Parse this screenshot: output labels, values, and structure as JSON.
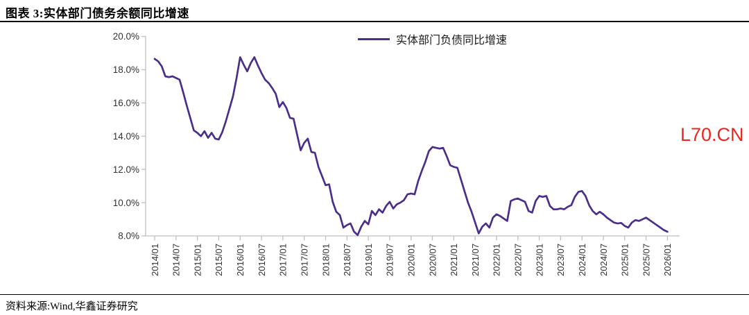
{
  "header": {
    "title": "图表 3:实体部门债务余额同比增速"
  },
  "legend": {
    "label": "实体部门负债同比增速"
  },
  "watermark": {
    "text": "L70.CN"
  },
  "footer": {
    "source": "资料来源:Wind,华鑫证券研究"
  },
  "colors": {
    "line": "#4B2D8C",
    "axis": "#BFBFBF",
    "tick_label": "#333333",
    "watermark": "#E8281E",
    "rule": "#000000"
  },
  "chart_data": {
    "type": "line",
    "title": "实体部门债务余额同比增速",
    "legend_position": "top-center",
    "grid": false,
    "ylim": [
      8,
      20
    ],
    "y_tick_labels": [
      "20.0%",
      "18.0%",
      "16.0%",
      "14.0%",
      "12.0%",
      "10.0%",
      "8.0%"
    ],
    "x_tick_labels": [
      "2014/01",
      "2014/07",
      "2015/01",
      "2015/07",
      "2016/01",
      "2016/07",
      "2017/01",
      "2017/07",
      "2018/01",
      "2018/07",
      "2019/01",
      "2019/07",
      "2020/01",
      "2020/07",
      "2021/01",
      "2021/07",
      "2022/01",
      "2022/07",
      "2023/01",
      "2023/07",
      "2024/01",
      "2024/07",
      "2025/01",
      "2025/07",
      "2026/01"
    ],
    "series": [
      {
        "name": "实体部门负债同比增速",
        "unit": "%",
        "frequency": "monthly",
        "start": "2014/01",
        "end": "2026/01",
        "values": [
          18.65,
          18.5,
          18.2,
          17.6,
          17.55,
          17.6,
          17.5,
          17.4,
          16.65,
          15.85,
          15.1,
          14.35,
          14.2,
          14.0,
          14.3,
          13.9,
          14.2,
          13.85,
          13.8,
          14.25,
          14.9,
          15.65,
          16.4,
          17.5,
          18.75,
          18.3,
          17.9,
          18.4,
          18.75,
          18.25,
          17.8,
          17.4,
          17.2,
          16.9,
          16.55,
          15.75,
          16.05,
          15.7,
          15.1,
          15.05,
          14.1,
          13.15,
          13.6,
          13.85,
          13.05,
          13.0,
          12.15,
          11.6,
          11.05,
          11.1,
          10.05,
          9.45,
          9.25,
          8.5,
          8.65,
          8.75,
          8.25,
          8.05,
          8.55,
          8.9,
          8.7,
          9.5,
          9.25,
          9.6,
          9.4,
          9.8,
          10.05,
          9.65,
          9.9,
          10.0,
          10.15,
          10.5,
          10.55,
          10.5,
          11.3,
          11.9,
          12.45,
          13.1,
          13.35,
          13.3,
          13.25,
          13.3,
          12.8,
          12.25,
          12.15,
          12.1,
          11.4,
          10.7,
          10.0,
          9.45,
          8.8,
          8.15,
          8.55,
          8.75,
          8.5,
          9.1,
          9.3,
          9.2,
          9.05,
          8.9,
          10.1,
          10.2,
          10.25,
          10.15,
          10.05,
          9.5,
          9.4,
          10.1,
          10.4,
          10.35,
          10.4,
          9.8,
          9.6,
          9.6,
          9.65,
          9.6,
          9.75,
          9.85,
          10.35,
          10.65,
          10.7,
          10.4,
          9.85,
          9.5,
          9.3,
          9.45,
          9.3,
          9.1,
          8.95,
          8.8,
          8.75,
          8.78,
          8.6,
          8.5,
          8.8,
          8.95,
          8.9,
          9.0,
          9.1,
          8.95,
          8.8,
          8.65,
          8.5,
          8.35,
          8.25
        ]
      }
    ]
  }
}
